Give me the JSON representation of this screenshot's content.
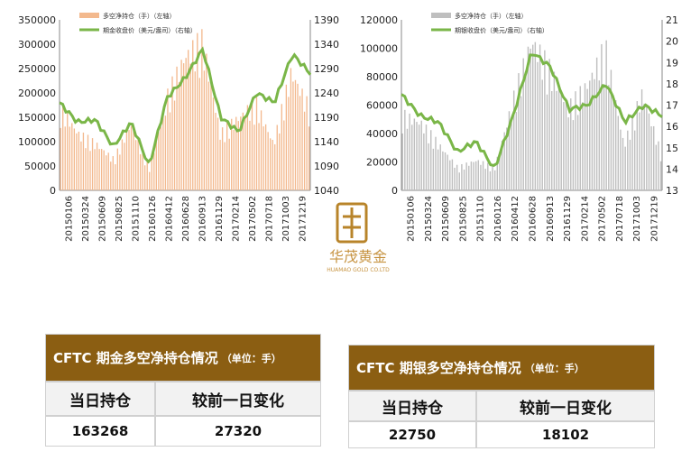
{
  "left_chart": {
    "legend": [
      "多空净持仓（手）（左轴）",
      "期金收盘价（美元/盎司）（右轴）"
    ],
    "bar_color": "#f3b98e",
    "line_color": "#7ab648",
    "y_left_ticks": [
      "0",
      "50000",
      "100000",
      "150000",
      "200000",
      "250000",
      "300000",
      "350000"
    ],
    "y_right_ticks": [
      "1040",
      "1090",
      "1140",
      "1190",
      "1240",
      "1290",
      "1340",
      "1390"
    ],
    "x_ticks": [
      "20150106",
      "20150324",
      "20150609",
      "20150825",
      "20151110",
      "20160126",
      "20160412",
      "20160628",
      "20160913",
      "20161129",
      "20170214",
      "20170502",
      "20170718",
      "20171003",
      "20171219"
    ]
  },
  "right_chart": {
    "legend": [
      "多空净持仓（手）（左轴）",
      "期银收盘价（美元/盎司）（右轴）"
    ],
    "bar_color": "#bfbfbf",
    "line_color": "#7ab648",
    "y_left_ticks": [
      "0",
      "20000",
      "40000",
      "60000",
      "80000",
      "100000",
      "120000"
    ],
    "y_right_ticks": [
      "13",
      "14",
      "15",
      "16",
      "17",
      "18",
      "19",
      "20",
      "21"
    ],
    "x_ticks": [
      "20150106",
      "20150324",
      "20150609",
      "20150825",
      "20151110",
      "20160126",
      "20160412",
      "20160628",
      "20160913",
      "20161129",
      "20170214",
      "20170502",
      "20170718",
      "20171003",
      "20171219"
    ]
  },
  "logo": {
    "cn": "华茂黄金",
    "en": "HUAMAO GOLD CO.LTD"
  },
  "gold_table": {
    "title": "CFTC 期金多空净持仓情况",
    "unit": "（单位：手）",
    "col1": "当日持仓",
    "col2": "较前一日变化",
    "value1": "163268",
    "value2": "27320"
  },
  "silver_table": {
    "title": "CFTC 期银多空净持仓情况",
    "unit": "（单位：手）",
    "col1": "当日持仓",
    "col2": "较前一日变化",
    "value1": "22750",
    "value2": "18102"
  },
  "chart_data": [
    {
      "type": "bar",
      "categories": [
        "20150106",
        "20150324",
        "20150609",
        "20150825",
        "20151110",
        "20160126",
        "20160412",
        "20160628",
        "20160913",
        "20161129",
        "20170214",
        "20170502",
        "20170718",
        "20171003",
        "20171219"
      ],
      "series": [
        {
          "name": "多空净持仓（手）（左轴）",
          "axis": "left",
          "values": [
            160000,
            110000,
            90000,
            60000,
            130000,
            40000,
            180000,
            260000,
            290000,
            110000,
            140000,
            170000,
            90000,
            230000,
            160000
          ]
        },
        {
          "name": "期金收盘价（美元/盎司）（右轴）",
          "type": "line",
          "axis": "right",
          "values": [
            1220,
            1180,
            1185,
            1130,
            1180,
            1090,
            1230,
            1270,
            1330,
            1190,
            1160,
            1240,
            1220,
            1320,
            1280
          ]
        }
      ],
      "ylim_left": [
        0,
        350000
      ],
      "ylim_right": [
        1040,
        1390
      ]
    },
    {
      "type": "bar",
      "categories": [
        "20150106",
        "20150324",
        "20150609",
        "20150825",
        "20151110",
        "20160126",
        "20160412",
        "20160628",
        "20160913",
        "20161129",
        "20170214",
        "20170502",
        "20170718",
        "20171003",
        "20171219"
      ],
      "series": [
        {
          "name": "多空净持仓（手）（左轴）",
          "axis": "left",
          "values": [
            50000,
            45000,
            30000,
            15000,
            20000,
            15000,
            60000,
            100000,
            80000,
            55000,
            70000,
            95000,
            30000,
            65000,
            25000
          ]
        },
        {
          "name": "期银收盘价（美元/盎司）（右轴）",
          "type": "line",
          "axis": "right",
          "values": [
            17.5,
            16.5,
            16.2,
            14.8,
            15.3,
            14.0,
            16.5,
            19.5,
            18.8,
            16.8,
            17.0,
            18.0,
            16.2,
            17.0,
            16.5
          ]
        }
      ],
      "ylim_left": [
        0,
        120000
      ],
      "ylim_right": [
        13,
        21
      ]
    }
  ]
}
